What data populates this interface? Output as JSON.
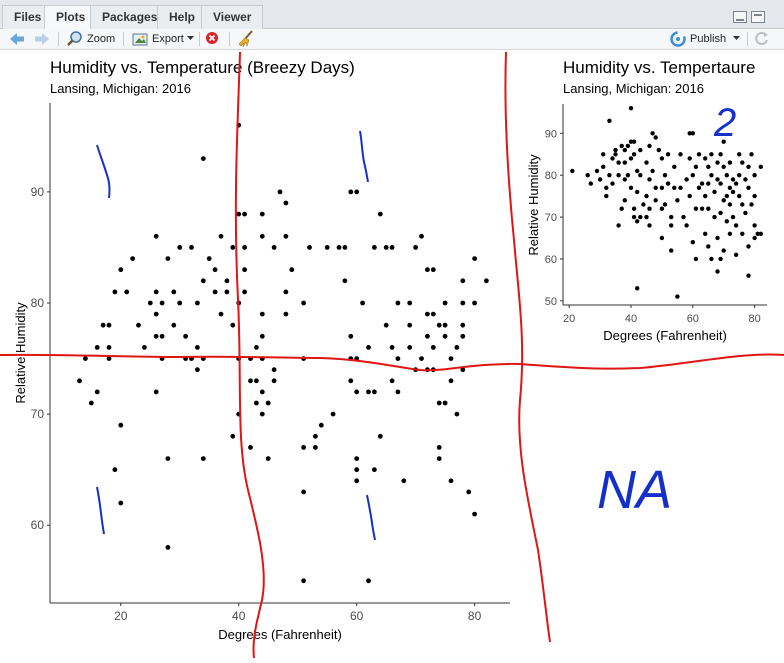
{
  "tabs": [
    {
      "label": "Files"
    },
    {
      "label": "Plots"
    },
    {
      "label": "Packages"
    },
    {
      "label": "Help"
    },
    {
      "label": "Viewer"
    }
  ],
  "toolbar": {
    "zoom_label": "Zoom",
    "export_label": "Export",
    "publish_label": "Publish",
    "icons": [
      "back-arrow-icon",
      "forward-arrow-icon",
      "zoom-icon",
      "export-icon",
      "remove-plot-icon",
      "broom-icon",
      "publish-icon",
      "refresh-icon"
    ]
  },
  "chart_data": [
    {
      "type": "scatter",
      "title": "Humidity vs. Temperature (Breezy Days)",
      "subtitle": "Lansing, Michigan: 2016",
      "xlabel": "Degrees (Fahrenheit)",
      "ylabel": "Relative Humidity",
      "xlim": [
        8,
        86
      ],
      "ylim": [
        53,
        98
      ],
      "xticks": [
        20,
        40,
        60,
        80
      ],
      "yticks": [
        60,
        70,
        80,
        90
      ],
      "points": [
        [
          13,
          73
        ],
        [
          14,
          75
        ],
        [
          15,
          71
        ],
        [
          16,
          72
        ],
        [
          16,
          76
        ],
        [
          17,
          78
        ],
        [
          18,
          76
        ],
        [
          18,
          78
        ],
        [
          18,
          75
        ],
        [
          19,
          65
        ],
        [
          19,
          81
        ],
        [
          20,
          62
        ],
        [
          20,
          69
        ],
        [
          20,
          83
        ],
        [
          21,
          81
        ],
        [
          22,
          84
        ],
        [
          23,
          78
        ],
        [
          24,
          76
        ],
        [
          25,
          80
        ],
        [
          26,
          86
        ],
        [
          26,
          81
        ],
        [
          26,
          79
        ],
        [
          26,
          77
        ],
        [
          26,
          72
        ],
        [
          27,
          80
        ],
        [
          27,
          77
        ],
        [
          27,
          75
        ],
        [
          28,
          84
        ],
        [
          28,
          66
        ],
        [
          28,
          58
        ],
        [
          29,
          81
        ],
        [
          29,
          78
        ],
        [
          30,
          85
        ],
        [
          30,
          80
        ],
        [
          31,
          75
        ],
        [
          31,
          77
        ],
        [
          32,
          85
        ],
        [
          32,
          75
        ],
        [
          33,
          80
        ],
        [
          33,
          76
        ],
        [
          33,
          74
        ],
        [
          34,
          93
        ],
        [
          34,
          82
        ],
        [
          34,
          75
        ],
        [
          34,
          66
        ],
        [
          35,
          84
        ],
        [
          36,
          83
        ],
        [
          36,
          81
        ],
        [
          37,
          79
        ],
        [
          37,
          86
        ],
        [
          38,
          82
        ],
        [
          38,
          81
        ],
        [
          39,
          78
        ],
        [
          39,
          85
        ],
        [
          40,
          96
        ],
        [
          40,
          88
        ],
        [
          40,
          80
        ],
        [
          40,
          75
        ],
        [
          40,
          70
        ],
        [
          39,
          68
        ],
        [
          41,
          88
        ],
        [
          41,
          85
        ],
        [
          41,
          83
        ],
        [
          41,
          81
        ],
        [
          42,
          75
        ],
        [
          42,
          73
        ],
        [
          42,
          67
        ],
        [
          43,
          76
        ],
        [
          43,
          73
        ],
        [
          43,
          71
        ],
        [
          44,
          88
        ],
        [
          44,
          86
        ],
        [
          44,
          79
        ],
        [
          44,
          77
        ],
        [
          44,
          75
        ],
        [
          44,
          72
        ],
        [
          44,
          70
        ],
        [
          45,
          71
        ],
        [
          45,
          66
        ],
        [
          46,
          85
        ],
        [
          46,
          74
        ],
        [
          46,
          73
        ],
        [
          47,
          90
        ],
        [
          48,
          89
        ],
        [
          48,
          86
        ],
        [
          48,
          81
        ],
        [
          48,
          79
        ],
        [
          49,
          83
        ],
        [
          51,
          80
        ],
        [
          51,
          75
        ],
        [
          51,
          67
        ],
        [
          51,
          63
        ],
        [
          51,
          55
        ],
        [
          52,
          85
        ],
        [
          53,
          68
        ],
        [
          53,
          67
        ],
        [
          54,
          69
        ],
        [
          55,
          85
        ],
        [
          56,
          70
        ],
        [
          57,
          85
        ],
        [
          59,
          90
        ],
        [
          58,
          85
        ],
        [
          58,
          82
        ],
        [
          59,
          77
        ],
        [
          59,
          75
        ],
        [
          59,
          73
        ],
        [
          60,
          90
        ],
        [
          60,
          75
        ],
        [
          60,
          72
        ],
        [
          60,
          66
        ],
        [
          60,
          65
        ],
        [
          60,
          64
        ],
        [
          61,
          80
        ],
        [
          62,
          76
        ],
        [
          62,
          72
        ],
        [
          62,
          55
        ],
        [
          63,
          85
        ],
        [
          63,
          72
        ],
        [
          63,
          65
        ],
        [
          64,
          88
        ],
        [
          64,
          68
        ],
        [
          65,
          85
        ],
        [
          65,
          78
        ],
        [
          66,
          85
        ],
        [
          66,
          76
        ],
        [
          66,
          73
        ],
        [
          67,
          80
        ],
        [
          67,
          75
        ],
        [
          67,
          72
        ],
        [
          68,
          64
        ],
        [
          69,
          80
        ],
        [
          69,
          78
        ],
        [
          69,
          76
        ],
        [
          70,
          85
        ],
        [
          70,
          74
        ],
        [
          71,
          86
        ],
        [
          71,
          75
        ],
        [
          72,
          83
        ],
        [
          72,
          79
        ],
        [
          72,
          77
        ],
        [
          72,
          74
        ],
        [
          73,
          83
        ],
        [
          73,
          79
        ],
        [
          73,
          76
        ],
        [
          73,
          74
        ],
        [
          74,
          78
        ],
        [
          74,
          71
        ],
        [
          74,
          67
        ],
        [
          74,
          66
        ],
        [
          75,
          71
        ],
        [
          75,
          80
        ],
        [
          75,
          78
        ],
        [
          75,
          77
        ],
        [
          76,
          73
        ],
        [
          76,
          64
        ],
        [
          76,
          75
        ],
        [
          77,
          76
        ],
        [
          77,
          70
        ],
        [
          78,
          80
        ],
        [
          78,
          78
        ],
        [
          78,
          77
        ],
        [
          78,
          74
        ],
        [
          78,
          82
        ],
        [
          79,
          63
        ],
        [
          80,
          61
        ],
        [
          80,
          80
        ],
        [
          80,
          84
        ],
        [
          82,
          82
        ]
      ]
    },
    {
      "type": "scatter",
      "title": "Humidity vs. Tempertaure",
      "subtitle": "Lansing, Michigan: 2016",
      "xlabel": "Degrees (Fahrenheit)",
      "ylabel": "Relative Humidity",
      "xlim": [
        18,
        84
      ],
      "ylim": [
        49,
        97
      ],
      "xticks": [
        20,
        40,
        60,
        80
      ],
      "yticks": [
        50,
        60,
        70,
        80,
        90
      ],
      "points": [
        [
          21,
          81
        ],
        [
          26,
          80
        ],
        [
          27,
          78
        ],
        [
          29,
          81
        ],
        [
          30,
          79
        ],
        [
          31,
          85
        ],
        [
          31,
          82
        ],
        [
          32,
          77
        ],
        [
          32,
          75
        ],
        [
          33,
          93
        ],
        [
          33,
          80
        ],
        [
          34,
          84
        ],
        [
          34,
          78
        ],
        [
          35,
          86
        ],
        [
          35,
          85
        ],
        [
          36,
          83
        ],
        [
          36,
          80
        ],
        [
          36,
          68
        ],
        [
          37,
          87
        ],
        [
          37,
          72
        ],
        [
          38,
          86
        ],
        [
          38,
          83
        ],
        [
          38,
          79
        ],
        [
          38,
          74
        ],
        [
          39,
          87
        ],
        [
          39,
          80
        ],
        [
          40,
          88
        ],
        [
          40,
          84
        ],
        [
          40,
          96
        ],
        [
          40,
          77
        ],
        [
          41,
          85
        ],
        [
          41,
          88
        ],
        [
          41,
          72
        ],
        [
          41,
          70
        ],
        [
          42,
          81
        ],
        [
          42,
          76
        ],
        [
          42,
          69
        ],
        [
          42,
          53
        ],
        [
          43,
          86
        ],
        [
          43,
          80
        ],
        [
          43,
          70
        ],
        [
          44,
          73
        ],
        [
          45,
          75
        ],
        [
          45,
          70
        ],
        [
          45,
          83
        ],
        [
          46,
          87
        ],
        [
          46,
          79
        ],
        [
          46,
          72
        ],
        [
          46,
          68
        ],
        [
          47,
          90
        ],
        [
          47,
          81
        ],
        [
          48,
          89
        ],
        [
          48,
          77
        ],
        [
          48,
          74
        ],
        [
          49,
          86
        ],
        [
          50,
          84
        ],
        [
          50,
          77
        ],
        [
          50,
          72
        ],
        [
          50,
          65
        ],
        [
          51,
          80
        ],
        [
          51,
          73
        ],
        [
          52,
          85
        ],
        [
          52,
          78
        ],
        [
          53,
          70
        ],
        [
          53,
          68
        ],
        [
          53,
          62
        ],
        [
          54,
          82
        ],
        [
          54,
          77
        ],
        [
          55,
          51
        ],
        [
          55,
          74
        ],
        [
          56,
          85
        ],
        [
          56,
          77
        ],
        [
          57,
          70
        ],
        [
          58,
          79
        ],
        [
          58,
          68
        ],
        [
          59,
          90
        ],
        [
          59,
          84
        ],
        [
          59,
          75
        ],
        [
          60,
          90
        ],
        [
          60,
          80
        ],
        [
          60,
          64
        ],
        [
          61,
          82
        ],
        [
          61,
          72
        ],
        [
          61,
          60
        ],
        [
          62,
          85
        ],
        [
          62,
          77
        ],
        [
          63,
          78
        ],
        [
          63,
          72
        ],
        [
          64,
          84
        ],
        [
          64,
          75
        ],
        [
          64,
          66
        ],
        [
          65,
          82
        ],
        [
          65,
          78
        ],
        [
          65,
          72
        ],
        [
          65,
          63
        ],
        [
          66,
          85
        ],
        [
          66,
          80
        ],
        [
          66,
          60
        ],
        [
          67,
          76
        ],
        [
          67,
          70
        ],
        [
          68,
          83
        ],
        [
          68,
          79
        ],
        [
          68,
          65
        ],
        [
          68,
          57
        ],
        [
          69,
          85
        ],
        [
          69,
          78
        ],
        [
          69,
          71
        ],
        [
          69,
          60
        ],
        [
          70,
          88
        ],
        [
          70,
          82
        ],
        [
          70,
          74
        ],
        [
          70,
          62
        ],
        [
          71,
          80
        ],
        [
          71,
          75
        ],
        [
          71,
          69
        ],
        [
          72,
          83
        ],
        [
          72,
          77
        ],
        [
          72,
          73
        ],
        [
          72,
          66
        ],
        [
          73,
          79
        ],
        [
          73,
          76
        ],
        [
          73,
          70
        ],
        [
          74,
          78
        ],
        [
          74,
          68
        ],
        [
          74,
          61
        ],
        [
          75,
          85
        ],
        [
          75,
          80
        ],
        [
          75,
          75
        ],
        [
          76,
          83
        ],
        [
          76,
          73
        ],
        [
          76,
          66
        ],
        [
          77,
          79
        ],
        [
          77,
          71
        ],
        [
          78,
          82
        ],
        [
          78,
          77
        ],
        [
          78,
          63
        ],
        [
          78,
          56
        ],
        [
          79,
          85
        ],
        [
          79,
          73
        ],
        [
          80,
          80
        ],
        [
          80,
          75
        ],
        [
          80,
          68
        ],
        [
          80,
          65
        ],
        [
          81,
          66
        ],
        [
          82,
          82
        ],
        [
          82,
          66
        ]
      ]
    }
  ],
  "annotations": {
    "na_label": "NA",
    "two_label": "2"
  },
  "colors": {
    "red_line": "#e01515",
    "blue_ink": "#1530c8",
    "point": "#000000"
  }
}
